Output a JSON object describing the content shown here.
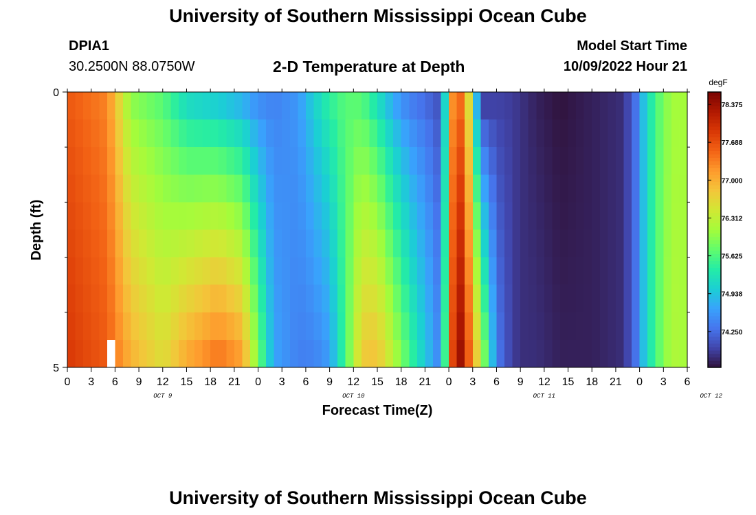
{
  "header": {
    "title": "University of Southern Mississippi Ocean Cube",
    "station": "DPIA1",
    "coords": "30.2500N  88.0750W",
    "model_start_label": "Model Start Time",
    "model_start_value": "10/09/2022 Hour 21",
    "footer_title": "University of Southern Mississippi Ocean Cube"
  },
  "chart_data": {
    "type": "heatmap",
    "title": "2-D Temperature at Depth",
    "xlabel": "Forecast Time(Z)",
    "ylabel": "Depth (ft)",
    "x_tick_labels": [
      "0",
      "3",
      "6",
      "9",
      "12",
      "15",
      "18",
      "21",
      "0",
      "3",
      "6",
      "9",
      "12",
      "15",
      "18",
      "21",
      "0",
      "3",
      "6",
      "9",
      "12",
      "15",
      "18",
      "21",
      "0",
      "3",
      "6"
    ],
    "x_date_labels": [
      {
        "label": "OCT 9",
        "hour": 12
      },
      {
        "label": "OCT 10",
        "hour": 36
      },
      {
        "label": "OCT 11",
        "hour": 60
      },
      {
        "label": "OCT 12",
        "hour": 81
      }
    ],
    "x_range_hours": [
      0,
      78
    ],
    "y_tick_labels": [
      "0",
      "5"
    ],
    "y_range_ft": [
      0,
      5
    ],
    "depth_levels_ft": [
      0.25,
      0.75,
      1.25,
      1.75,
      2.25,
      2.75,
      3.25,
      3.75,
      4.25,
      4.75
    ],
    "colorbar": {
      "unit": "degF",
      "min": 73.6,
      "max": 78.6,
      "tick_labels": [
        "78.375",
        "77.688",
        "77.000",
        "76.312",
        "75.625",
        "74.938",
        "74.250"
      ],
      "colors": [
        "#30123b",
        "#4145ab",
        "#4675ed",
        "#39a2fc",
        "#1bcfd4",
        "#24eca6",
        "#61fc6c",
        "#a4fc3b",
        "#d1e834",
        "#f3c63a",
        "#fe9b2d",
        "#f36315",
        "#d93806",
        "#b11901",
        "#7a0402"
      ]
    },
    "profile_breakpoints_hours": [
      0,
      5,
      8,
      12,
      15,
      19,
      22,
      24,
      26,
      29,
      31,
      33,
      35,
      37,
      39,
      41,
      43,
      45,
      47,
      48.5,
      49.5,
      50.5,
      52,
      54,
      56,
      57.5,
      59,
      62,
      66,
      70,
      71.5,
      72.5,
      74,
      76,
      78
    ],
    "surface_temps_degF": [
      77.6,
      77.3,
      75.9,
      75.6,
      75.0,
      74.8,
      74.6,
      74.4,
      74.4,
      74.6,
      75.1,
      75.5,
      75.7,
      75.6,
      75.1,
      74.6,
      74.3,
      74.2,
      74.0,
      77.2,
      77.4,
      76.5,
      73.7,
      73.9,
      73.9,
      73.8,
      73.7,
      73.6,
      73.7,
      73.8,
      74.3,
      74.9,
      75.6,
      76.1,
      76.1
    ],
    "bottom_temps_degF": [
      77.9,
      77.6,
      77.0,
      76.6,
      77.1,
      77.5,
      77.2,
      75.9,
      74.7,
      74.4,
      74.4,
      74.6,
      75.6,
      76.8,
      76.9,
      76.3,
      75.6,
      75.0,
      74.4,
      77.8,
      78.4,
      77.6,
      76.4,
      74.4,
      73.9,
      73.8,
      73.8,
      73.7,
      73.7,
      73.8,
      74.3,
      74.9,
      75.6,
      76.2,
      76.1
    ],
    "missing_cells": [
      {
        "hour": 5.5,
        "depth_ft": 4.75
      }
    ],
    "grid": false
  }
}
